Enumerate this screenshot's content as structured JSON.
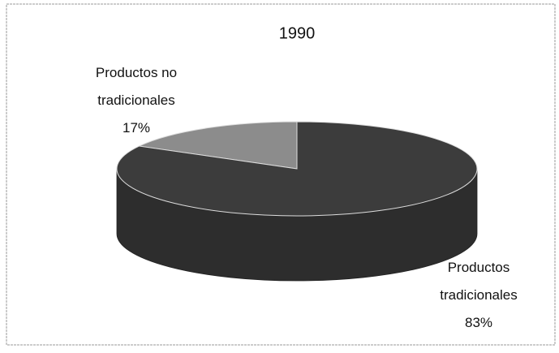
{
  "chart_data": {
    "type": "pie",
    "title": "1990",
    "categories": [
      "Productos no tradicionales",
      "Productos tradicionales"
    ],
    "values": [
      17,
      83
    ],
    "value_labels": [
      "17%",
      "83%"
    ],
    "colors": [
      "#8c8c8c",
      "#3c3c3c"
    ]
  }
}
